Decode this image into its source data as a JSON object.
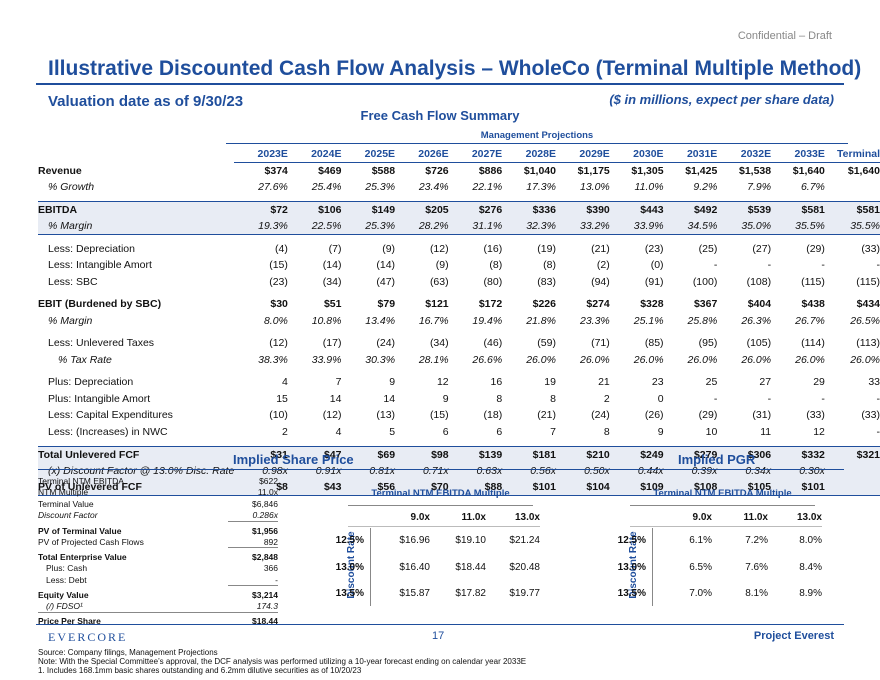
{
  "header": {
    "confidential": "Confidential – Draft",
    "title": "Illustrative Discounted Cash Flow Analysis – WholeCo (Terminal Multiple Method)",
    "valuation_date": "Valuation date as of 9/30/23",
    "units": "($ in millions, expect per share data)"
  },
  "fcf": {
    "title": "Free Cash Flow Summary",
    "group_header": "Management Projections",
    "columns": [
      "2023E",
      "2024E",
      "2025E",
      "2026E",
      "2027E",
      "2028E",
      "2029E",
      "2030E",
      "2031E",
      "2032E",
      "2033E",
      "Terminal"
    ],
    "rows": [
      {
        "label": "Revenue",
        "style": "bold",
        "values": [
          "$374",
          "$469",
          "$588",
          "$726",
          "$886",
          "$1,040",
          "$1,175",
          "$1,305",
          "$1,425",
          "$1,538",
          "$1,640",
          "$1,640"
        ]
      },
      {
        "label": "% Growth",
        "style": "ital1",
        "values": [
          "27.6%",
          "25.4%",
          "25.3%",
          "23.4%",
          "22.1%",
          "17.3%",
          "13.0%",
          "11.0%",
          "9.2%",
          "7.9%",
          "6.7%",
          ""
        ]
      },
      {
        "label": "",
        "style": "gap",
        "values": []
      },
      {
        "label": "EBITDA",
        "style": "bold hl top",
        "values": [
          "$72",
          "$106",
          "$149",
          "$205",
          "$276",
          "$336",
          "$390",
          "$443",
          "$492",
          "$539",
          "$581",
          "$581"
        ]
      },
      {
        "label": "% Margin",
        "style": "ital1 hl bot",
        "values": [
          "19.3%",
          "22.5%",
          "25.3%",
          "28.2%",
          "31.1%",
          "32.3%",
          "33.2%",
          "33.9%",
          "34.5%",
          "35.0%",
          "35.5%",
          "35.5%"
        ]
      },
      {
        "label": "",
        "style": "gap",
        "values": []
      },
      {
        "label": "Less: Depreciation",
        "style": "ind1",
        "values": [
          "(4)",
          "(7)",
          "(9)",
          "(12)",
          "(16)",
          "(19)",
          "(21)",
          "(23)",
          "(25)",
          "(27)",
          "(29)",
          "(33)"
        ]
      },
      {
        "label": "Less: Intangible Amort",
        "style": "ind1",
        "values": [
          "(15)",
          "(14)",
          "(14)",
          "(9)",
          "(8)",
          "(8)",
          "(2)",
          "(0)",
          "-",
          "-",
          "-",
          "-"
        ]
      },
      {
        "label": "Less: SBC",
        "style": "ind1",
        "values": [
          "(23)",
          "(34)",
          "(47)",
          "(63)",
          "(80)",
          "(83)",
          "(94)",
          "(91)",
          "(100)",
          "(108)",
          "(115)",
          "(115)"
        ]
      },
      {
        "label": "",
        "style": "gap",
        "values": []
      },
      {
        "label": "EBIT (Burdened by SBC)",
        "style": "bold",
        "values": [
          "$30",
          "$51",
          "$79",
          "$121",
          "$172",
          "$226",
          "$274",
          "$328",
          "$367",
          "$404",
          "$438",
          "$434"
        ]
      },
      {
        "label": "% Margin",
        "style": "ital1",
        "values": [
          "8.0%",
          "10.8%",
          "13.4%",
          "16.7%",
          "19.4%",
          "21.8%",
          "23.3%",
          "25.1%",
          "25.8%",
          "26.3%",
          "26.7%",
          "26.5%"
        ]
      },
      {
        "label": "",
        "style": "gap",
        "values": []
      },
      {
        "label": "Less: Unlevered Taxes",
        "style": "ind1",
        "values": [
          "(12)",
          "(17)",
          "(24)",
          "(34)",
          "(46)",
          "(59)",
          "(71)",
          "(85)",
          "(95)",
          "(105)",
          "(114)",
          "(113)"
        ]
      },
      {
        "label": "% Tax Rate",
        "style": "ital2",
        "values": [
          "38.3%",
          "33.9%",
          "30.3%",
          "28.1%",
          "26.6%",
          "26.0%",
          "26.0%",
          "26.0%",
          "26.0%",
          "26.0%",
          "26.0%",
          "26.0%"
        ]
      },
      {
        "label": "",
        "style": "gap",
        "values": []
      },
      {
        "label": "Plus: Depreciation",
        "style": "ind1",
        "values": [
          "4",
          "7",
          "9",
          "12",
          "16",
          "19",
          "21",
          "23",
          "25",
          "27",
          "29",
          "33"
        ]
      },
      {
        "label": "Plus: Intangible Amort",
        "style": "ind1",
        "values": [
          "15",
          "14",
          "14",
          "9",
          "8",
          "8",
          "2",
          "0",
          "-",
          "-",
          "-",
          "-"
        ]
      },
      {
        "label": "Less: Capital Expenditures",
        "style": "ind1",
        "values": [
          "(10)",
          "(12)",
          "(13)",
          "(15)",
          "(18)",
          "(21)",
          "(24)",
          "(26)",
          "(29)",
          "(31)",
          "(33)",
          "(33)"
        ]
      },
      {
        "label": "Less: (Increases) in NWC",
        "style": "ind1",
        "values": [
          "2",
          "4",
          "5",
          "6",
          "6",
          "7",
          "8",
          "9",
          "10",
          "11",
          "12",
          "-"
        ]
      },
      {
        "label": "",
        "style": "gap",
        "values": []
      },
      {
        "label": "Total Unlevered FCF",
        "style": "bold hl top",
        "values": [
          "$31",
          "$47",
          "$69",
          "$98",
          "$139",
          "$181",
          "$210",
          "$249",
          "$279",
          "$306",
          "$332",
          "$321"
        ]
      },
      {
        "label": "(x) Discount Factor @ 13.0% Disc. Rate",
        "style": "ital1 hl",
        "values": [
          "0.98x",
          "0.91x",
          "0.81x",
          "0.71x",
          "0.63x",
          "0.56x",
          "0.50x",
          "0.44x",
          "0.39x",
          "0.34x",
          "0.30x",
          ""
        ]
      },
      {
        "label": "PV of Unlevered FCF",
        "style": "bold hl bot",
        "values": [
          "$8",
          "$43",
          "$56",
          "$70",
          "$88",
          "$101",
          "$104",
          "$109",
          "$108",
          "$105",
          "$101",
          ""
        ]
      }
    ]
  },
  "implied_share_price": {
    "title": "Implied Share Price",
    "bridge": [
      {
        "label": "Terminal NTM EBITDA",
        "value": "$622",
        "style": ""
      },
      {
        "label": "NTM Multiple",
        "value": "11.0x",
        "style": ""
      },
      {
        "label": "Terminal Value",
        "value": "$6,846",
        "style": ""
      },
      {
        "label": "Discount Factor",
        "value": "0.286x",
        "style": "ital ul"
      },
      {
        "label": "PV of Terminal Value",
        "value": "$1,956",
        "style": "bold"
      },
      {
        "label": "PV of Projected Cash Flows",
        "value": "892",
        "style": "ul"
      },
      {
        "label": "Total Enterprise Value",
        "value": "$2,848",
        "style": "bold"
      },
      {
        "label": "Plus: Cash",
        "value": "366",
        "style": "ind"
      },
      {
        "label": "Less: Debt",
        "value": "-",
        "style": "ind ul"
      },
      {
        "label": "Equity Value",
        "value": "$3,214",
        "style": "bold"
      },
      {
        "label": "(/) FDSO¹",
        "value": "174.3",
        "style": "ital ind ul"
      },
      {
        "label": "Price Per Share",
        "value": "$18.44",
        "style": "bold top"
      }
    ],
    "sensitivity": {
      "header": "Terminal NTM EBITDA Multiple",
      "axis_label": "Discount Rate",
      "multiples": [
        "9.0x",
        "11.0x",
        "13.0x"
      ],
      "rates": [
        "12.5%",
        "13.0%",
        "13.5%"
      ],
      "values": [
        [
          "$16.96",
          "$19.10",
          "$21.24"
        ],
        [
          "$16.40",
          "$18.44",
          "$20.48"
        ],
        [
          "$15.87",
          "$17.82",
          "$19.77"
        ]
      ]
    }
  },
  "implied_pgr": {
    "title": "Implied PGR",
    "header": "Terminal NTM EBITDA Multiple",
    "axis_label": "Discount Rate",
    "multiples": [
      "9.0x",
      "11.0x",
      "13.0x"
    ],
    "rates": [
      "12.5%",
      "13.0%",
      "13.5%"
    ],
    "values": [
      [
        "6.1%",
        "7.2%",
        "8.0%"
      ],
      [
        "6.5%",
        "7.6%",
        "8.4%"
      ],
      [
        "7.0%",
        "8.1%",
        "8.9%"
      ]
    ]
  },
  "footer": {
    "logo": "EVERCORE",
    "page": "17",
    "project": "Project Everest",
    "source": "Source: Company filings, Management Projections",
    "note": "Note: With the Special Committee’s approval, the DCF analysis was performed utilizing a 10-year forecast ending on calendar year 2033E",
    "footnote": "1.    Includes 168.1mm basic shares outstanding and 6.2mm dilutive securities as of 10/20/23"
  }
}
